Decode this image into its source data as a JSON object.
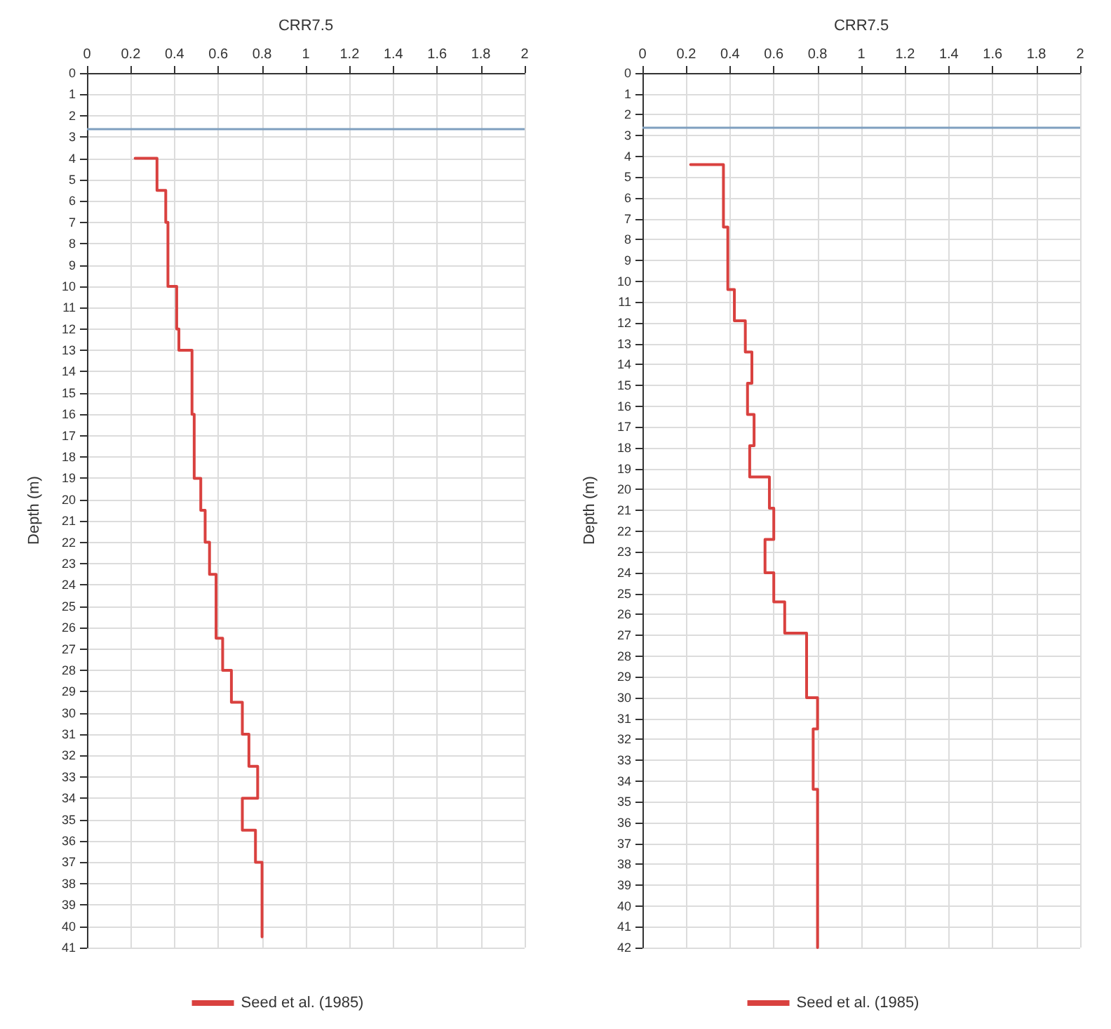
{
  "chart_data": [
    {
      "type": "line",
      "xlabel": "CRR7.5",
      "ylabel": "Depth (m)",
      "xlim": [
        0,
        2
      ],
      "xticks": [
        0,
        0.2,
        0.4,
        0.6,
        0.8,
        1,
        1.2,
        1.4,
        1.6,
        1.8,
        2
      ],
      "ylim": [
        41,
        0
      ],
      "yticks": [
        0,
        1,
        2,
        3,
        4,
        5,
        6,
        7,
        8,
        9,
        10,
        11,
        12,
        13,
        14,
        15,
        16,
        17,
        18,
        19,
        20,
        21,
        22,
        23,
        24,
        25,
        26,
        27,
        28,
        29,
        30,
        31,
        32,
        33,
        34,
        35,
        36,
        37,
        38,
        39,
        40,
        41
      ],
      "grid": true,
      "legend": "bottom",
      "ref_lines": [
        {
          "axis": "y",
          "value": 2.6,
          "color": "#7f9fbf"
        }
      ],
      "series": [
        {
          "name": "Seed et al. (1985)",
          "color": "#d9413f",
          "x": [
            0.22,
            0.32,
            0.32,
            0.36,
            0.36,
            0.37,
            0.37,
            0.41,
            0.41,
            0.42,
            0.42,
            0.48,
            0.48,
            0.49,
            0.49,
            0.52,
            0.52,
            0.54,
            0.54,
            0.56,
            0.56,
            0.59,
            0.59,
            0.62,
            0.62,
            0.66,
            0.66,
            0.71,
            0.71,
            0.74,
            0.74,
            0.78,
            0.78,
            0.71,
            0.71,
            0.77,
            0.77,
            0.8,
            0.8
          ],
          "values": [
            4,
            4,
            5.5,
            5.5,
            7,
            7,
            10,
            10,
            12,
            12,
            13,
            13,
            16,
            16,
            19,
            19,
            20.5,
            20.5,
            22,
            22,
            23.5,
            23.5,
            26.5,
            26.5,
            28,
            28,
            29.5,
            29.5,
            31,
            31,
            32.5,
            32.5,
            34,
            34,
            35.5,
            35.5,
            37,
            37,
            40.5
          ]
        }
      ]
    },
    {
      "type": "line",
      "xlabel": "CRR7.5",
      "ylabel": "Depth (m)",
      "xlim": [
        0,
        2
      ],
      "xticks": [
        0,
        0.2,
        0.4,
        0.6,
        0.8,
        1,
        1.2,
        1.4,
        1.6,
        1.8,
        2
      ],
      "ylim": [
        42,
        0
      ],
      "yticks": [
        0,
        1,
        2,
        3,
        4,
        5,
        6,
        7,
        8,
        9,
        10,
        11,
        12,
        13,
        14,
        15,
        16,
        17,
        18,
        19,
        20,
        21,
        22,
        23,
        24,
        25,
        26,
        27,
        28,
        29,
        30,
        31,
        32,
        33,
        34,
        35,
        36,
        37,
        38,
        39,
        40,
        41,
        42
      ],
      "grid": true,
      "legend": "bottom",
      "ref_lines": [
        {
          "axis": "y",
          "value": 2.6,
          "color": "#7f9fbf"
        }
      ],
      "series": [
        {
          "name": "Seed et al. (1985)",
          "color": "#d9413f",
          "x": [
            0.22,
            0.37,
            0.37,
            0.39,
            0.39,
            0.42,
            0.42,
            0.47,
            0.47,
            0.5,
            0.5,
            0.48,
            0.48,
            0.51,
            0.51,
            0.49,
            0.49,
            0.58,
            0.58,
            0.6,
            0.6,
            0.56,
            0.56,
            0.6,
            0.6,
            0.65,
            0.65,
            0.75,
            0.75,
            0.8,
            0.8,
            0.78,
            0.78,
            0.8,
            0.8
          ],
          "values": [
            4.4,
            4.4,
            7.4,
            7.4,
            10.4,
            10.4,
            11.9,
            11.9,
            13.4,
            13.4,
            14.9,
            14.9,
            16.4,
            16.4,
            17.9,
            17.9,
            19.4,
            19.4,
            20.9,
            20.9,
            22.4,
            22.4,
            24,
            24,
            25.4,
            25.4,
            26.9,
            26.9,
            30,
            30,
            31.5,
            31.5,
            34.4,
            34.4,
            42
          ]
        }
      ]
    }
  ]
}
